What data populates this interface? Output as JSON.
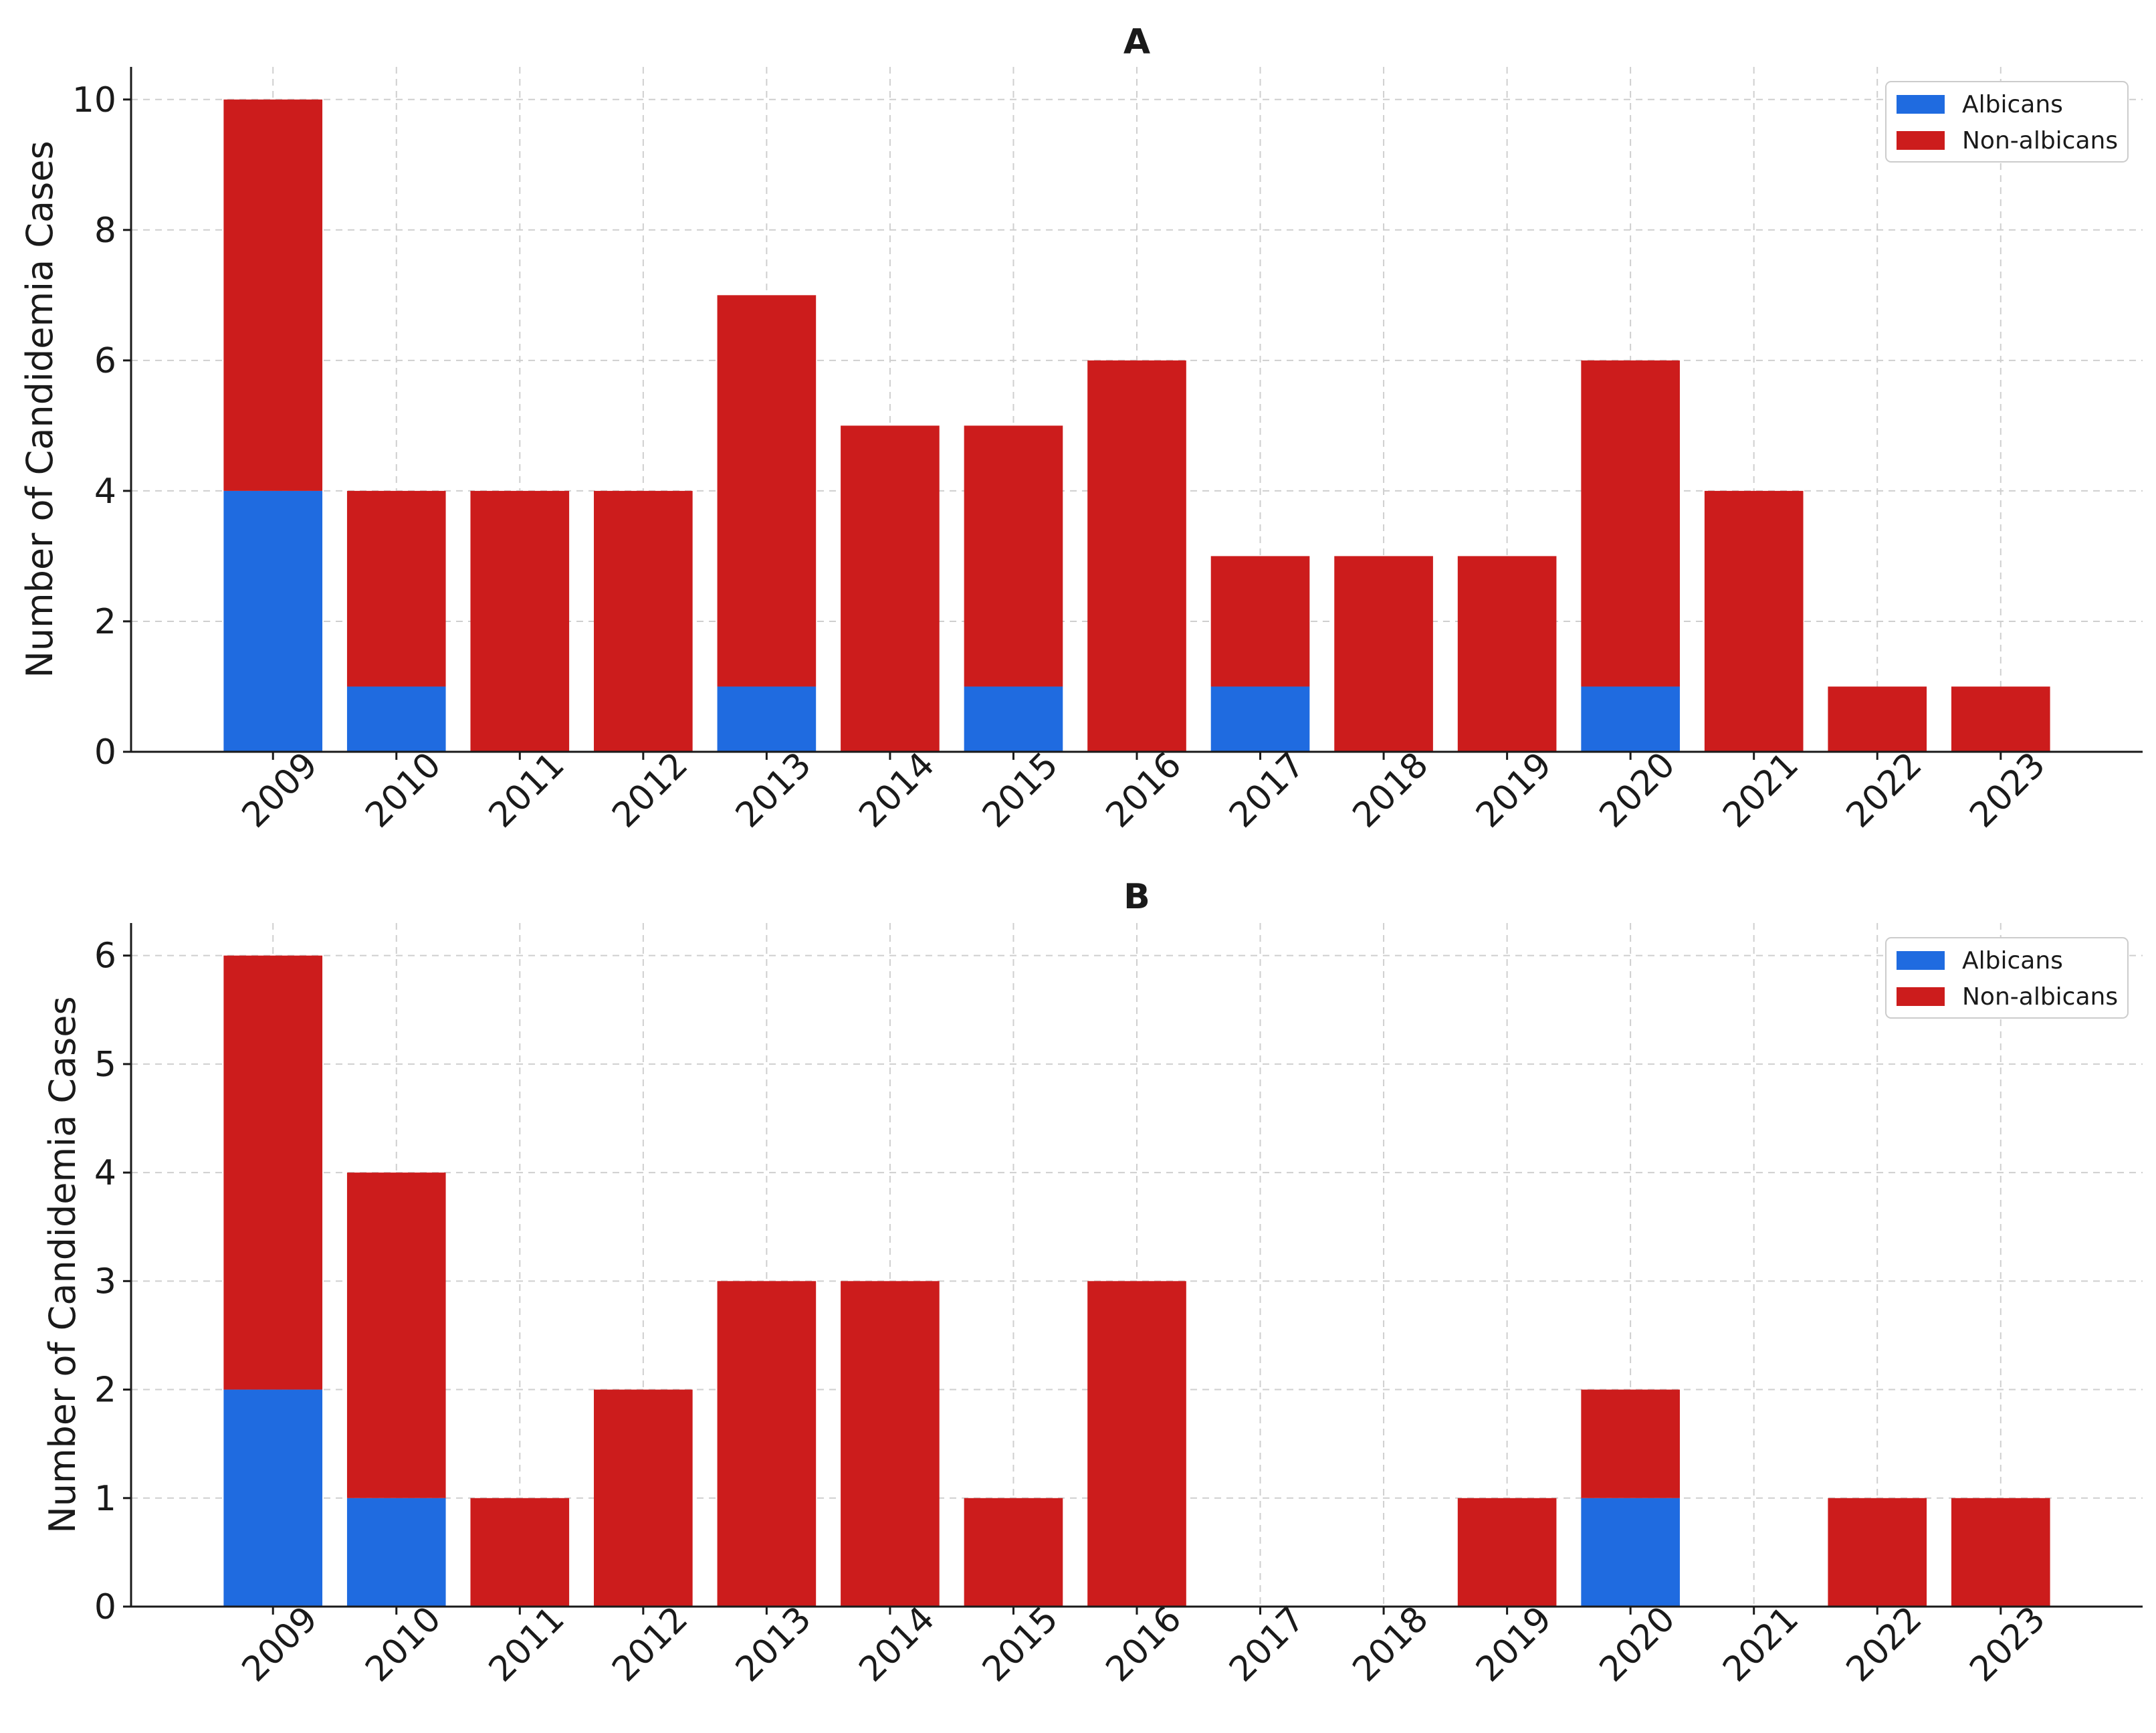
{
  "chart_data": [
    {
      "type": "bar",
      "stacked": true,
      "title": "A",
      "xlabel": "",
      "ylabel": "Number of Candidemia Cases",
      "categories": [
        "2009",
        "2010",
        "2011",
        "2012",
        "2013",
        "2014",
        "2015",
        "2016",
        "2017",
        "2018",
        "2019",
        "2020",
        "2021",
        "2022",
        "2023"
      ],
      "series": [
        {
          "name": "Albicans",
          "color": "#1f6be0",
          "values": [
            4,
            1,
            0,
            0,
            1,
            0,
            1,
            0,
            1,
            0,
            0,
            1,
            0,
            0,
            0
          ]
        },
        {
          "name": "Non-albicans",
          "color": "#cc1c1c",
          "values": [
            6,
            3,
            4,
            4,
            6,
            5,
            4,
            6,
            2,
            3,
            3,
            5,
            4,
            1,
            1
          ]
        }
      ],
      "ylim": [
        0,
        10.5
      ],
      "yticks": [
        0,
        2,
        4,
        6,
        8,
        10
      ],
      "grid": true,
      "legend": "top-right"
    },
    {
      "type": "bar",
      "stacked": true,
      "title": "B",
      "xlabel": "",
      "ylabel": "Number of Candidemia Cases",
      "categories": [
        "2009",
        "2010",
        "2011",
        "2012",
        "2013",
        "2014",
        "2015",
        "2016",
        "2017",
        "2018",
        "2019",
        "2020",
        "2021",
        "2022",
        "2023"
      ],
      "series": [
        {
          "name": "Albicans",
          "color": "#1f6be0",
          "values": [
            2,
            1,
            0,
            0,
            0,
            0,
            0,
            0,
            0,
            0,
            0,
            1,
            0,
            0,
            0
          ]
        },
        {
          "name": "Non-albicans",
          "color": "#cc1c1c",
          "values": [
            4,
            3,
            1,
            2,
            3,
            3,
            1,
            3,
            0,
            0,
            1,
            1,
            0,
            1,
            1
          ]
        }
      ],
      "ylim": [
        0,
        6.3
      ],
      "yticks": [
        0,
        1,
        2,
        3,
        4,
        5,
        6
      ],
      "grid": true,
      "legend": "top-right"
    }
  ]
}
